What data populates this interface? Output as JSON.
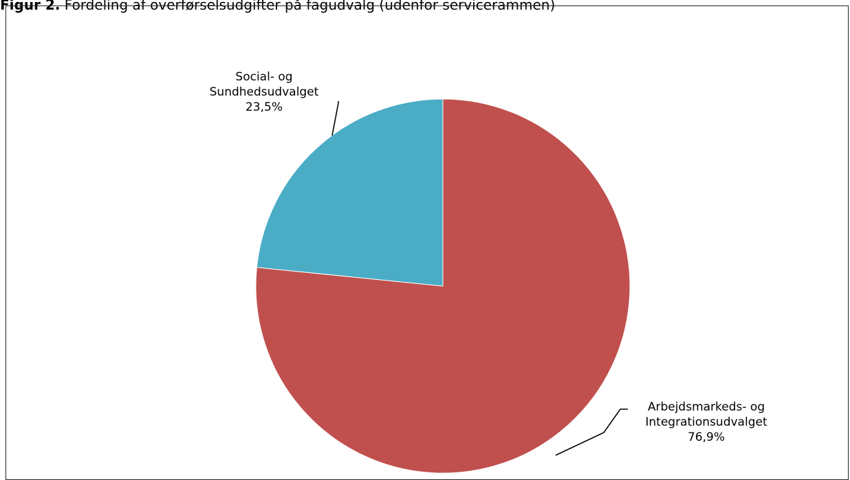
{
  "figure": {
    "label": "Figur 2.",
    "caption": "Fordeling af overførselsudgifter på fagudvalg (udenfor servicerammen)"
  },
  "chart_data": {
    "type": "pie",
    "title": "Figur 2. Fordeling af overførselsudgifter på fagudvalg (udenfor servicerammen)",
    "start_angle_deg": 0,
    "direction": "clockwise",
    "slices": [
      {
        "name_lines": [
          "Arbejdsmarkeds- og",
          "Integrationsudvalget"
        ],
        "percent_label": "76,9%",
        "value": 76.9,
        "color": "#C0504D"
      },
      {
        "name_lines": [
          "Social- og",
          "Sundhedsudvalget"
        ],
        "percent_label": "23,5%",
        "value": 23.5,
        "color": "#4BACC6"
      }
    ],
    "legend": "none",
    "data_labels": "outside with leader lines"
  }
}
